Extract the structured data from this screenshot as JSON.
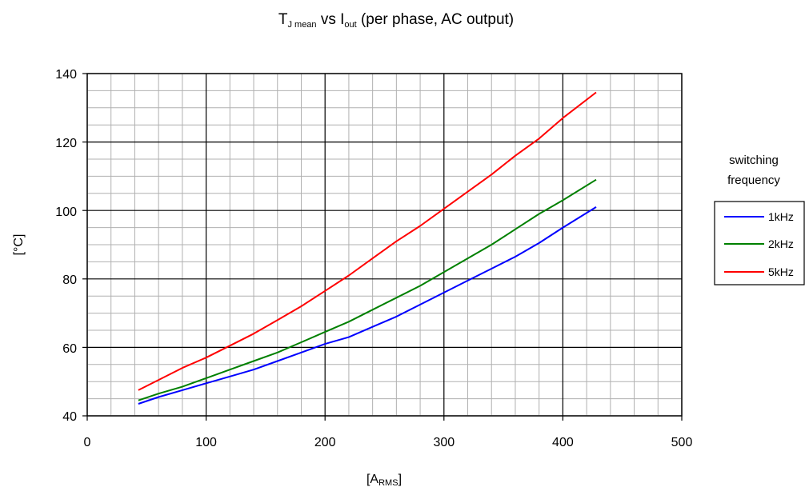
{
  "chart_data": {
    "type": "line",
    "title": {
      "main": "T",
      "main_sub": "J mean",
      "mid": " vs I",
      "mid_sub": "out",
      "tail": " (per phase, AC output)"
    },
    "xlabel": {
      "main": "[A",
      "sub": "RMS",
      "tail": "]"
    },
    "ylabel": "[°C]",
    "xlim": [
      0,
      500
    ],
    "ylim": [
      40,
      140
    ],
    "x_ticks": [
      "0",
      "100",
      "200",
      "300",
      "400",
      "500"
    ],
    "y_ticks": [
      "40",
      "60",
      "80",
      "100",
      "120",
      "140"
    ],
    "grid": "on",
    "legend": {
      "title_lines": [
        "switching",
        "frequency"
      ],
      "placement": "right"
    },
    "series": [
      {
        "name": "1kHz",
        "color": "#0000ff",
        "x": [
          43,
          60,
          80,
          100,
          120,
          140,
          160,
          180,
          200,
          220,
          240,
          260,
          280,
          300,
          320,
          340,
          360,
          380,
          400,
          428
        ],
        "y": [
          43.5,
          45.5,
          47.5,
          49.5,
          51.5,
          53.5,
          56,
          58.5,
          61,
          63,
          66,
          69,
          72.5,
          76,
          79.5,
          83,
          86.5,
          90.5,
          95,
          101
        ]
      },
      {
        "name": "2kHz",
        "color": "#008000",
        "x": [
          43,
          60,
          80,
          100,
          120,
          140,
          160,
          180,
          200,
          220,
          240,
          260,
          280,
          300,
          320,
          340,
          360,
          380,
          400,
          428
        ],
        "y": [
          44.5,
          46.5,
          48.5,
          51,
          53.5,
          56,
          58.5,
          61.5,
          64.5,
          67.5,
          71,
          74.5,
          78,
          82,
          86,
          90,
          94.5,
          99,
          103,
          109
        ]
      },
      {
        "name": "5kHz",
        "color": "#ff0000",
        "x": [
          43,
          60,
          80,
          100,
          120,
          140,
          160,
          180,
          200,
          220,
          240,
          260,
          280,
          300,
          320,
          340,
          360,
          380,
          400,
          428
        ],
        "y": [
          47.5,
          50.5,
          54,
          57,
          60.5,
          64,
          68,
          72,
          76.5,
          81,
          86,
          91,
          95.5,
          100.5,
          105.5,
          110.5,
          116,
          121,
          127,
          134.5
        ]
      }
    ]
  }
}
